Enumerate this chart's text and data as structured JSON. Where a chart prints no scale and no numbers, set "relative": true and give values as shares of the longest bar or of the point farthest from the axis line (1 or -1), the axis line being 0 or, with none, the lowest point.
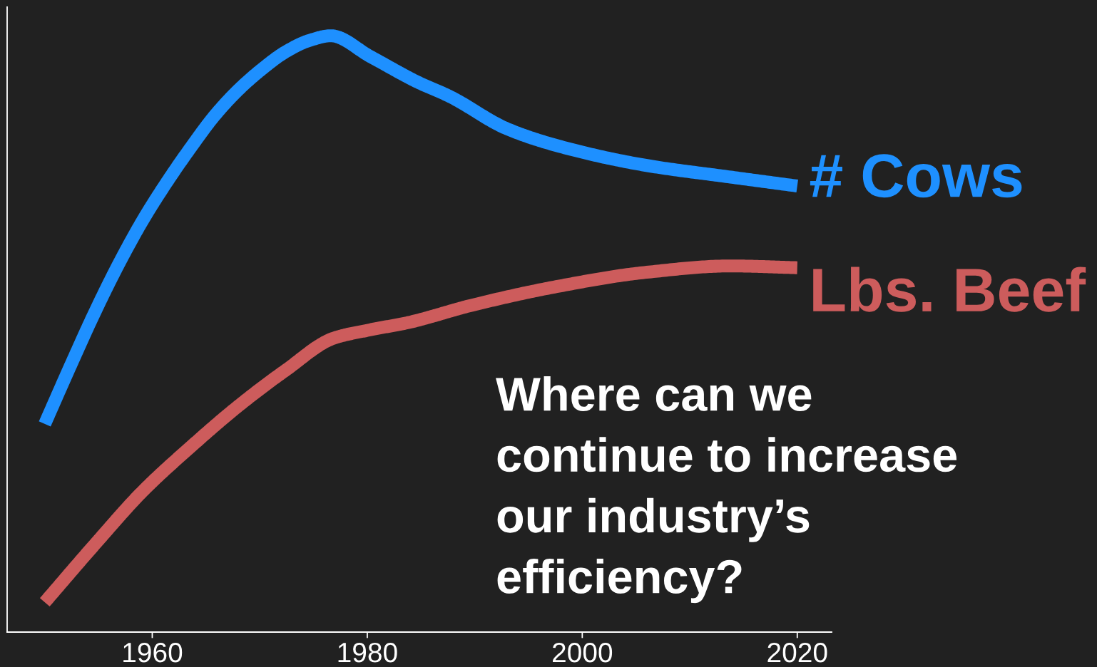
{
  "chart_data": {
    "type": "line",
    "relative": true,
    "annotations": [
      "Where can we\ncontinue to increase\nour industry’s\nefficiency?"
    ],
    "xlim": [
      1946.5,
      2023.2
    ],
    "xticks": [
      1960,
      1980,
      2000,
      2020
    ],
    "tick_labels": "x",
    "line_style": "solid",
    "series": [
      {
        "name": "# Cows",
        "color": "#1e90ff",
        "x": [
          1950,
          1952.5,
          1954.7,
          1956.9,
          1959.1,
          1961.3,
          1963.6,
          1965.8,
          1968.0,
          1970.2,
          1972.4,
          1974.6,
          1976.6,
          1980.3,
          1984.6,
          1987.7,
          1993.0,
          1997.8,
          2005.8,
          2013.8,
          2020
        ],
        "values": [
          0.349,
          0.451,
          0.538,
          0.618,
          0.69,
          0.753,
          0.813,
          0.866,
          0.909,
          0.944,
          0.973,
          0.992,
          1.0,
          0.965,
          0.923,
          0.898,
          0.844,
          0.815,
          0.783,
          0.763,
          0.748
        ]
      },
      {
        "name": "Lbs. Beef",
        "color": "#cd5c5c",
        "x": [
          1950,
          1954.7,
          1959.1,
          1963.6,
          1968.0,
          1972.4,
          1976.9,
          1980.3,
          1983.8,
          1989.7,
          1997.8,
          2005.8,
          2013.8,
          2020
        ],
        "values": [
          0.05,
          0.148,
          0.236,
          0.311,
          0.379,
          0.439,
          0.493,
          0.507,
          0.519,
          0.548,
          0.58,
          0.603,
          0.614,
          0.611
        ]
      }
    ]
  }
}
